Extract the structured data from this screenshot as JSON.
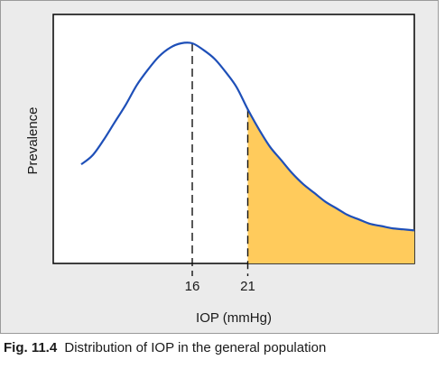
{
  "chart_data": {
    "type": "line",
    "xlabel": "IOP (mmHg)",
    "ylabel": "Prevalence",
    "xlim": [
      6,
      36
    ],
    "ylim": [
      0,
      1.0
    ],
    "x_ticks": [
      16,
      21
    ],
    "x_tick_labels": [
      "16",
      "21"
    ],
    "grid": false,
    "series": [
      {
        "x": [
          6,
          7,
          8,
          9,
          10,
          11,
          12,
          13,
          14,
          15,
          16,
          17,
          18,
          19,
          20,
          21,
          22,
          23,
          24,
          25,
          26,
          27,
          28,
          29,
          30,
          31,
          32,
          33,
          34,
          35,
          36
        ],
        "values": [
          0.45,
          0.49,
          0.56,
          0.64,
          0.72,
          0.81,
          0.88,
          0.94,
          0.98,
          1.0,
          1.0,
          0.97,
          0.93,
          0.87,
          0.8,
          0.7,
          0.61,
          0.53,
          0.47,
          0.41,
          0.36,
          0.32,
          0.28,
          0.25,
          0.22,
          0.2,
          0.18,
          0.17,
          0.16,
          0.155,
          0.15
        ]
      }
    ],
    "markers": [
      {
        "x": 16,
        "style": "dashed"
      },
      {
        "x": 21,
        "style": "dashed"
      }
    ],
    "shaded_region": {
      "from_x": 21,
      "to_x": 36
    },
    "colors": {
      "curve": "#1e4fb8",
      "shade": "#ffcb5c",
      "axes": "#111111"
    }
  },
  "caption": {
    "label": "Fig. 11.4",
    "text": "Distribution of IOP in the general population"
  }
}
